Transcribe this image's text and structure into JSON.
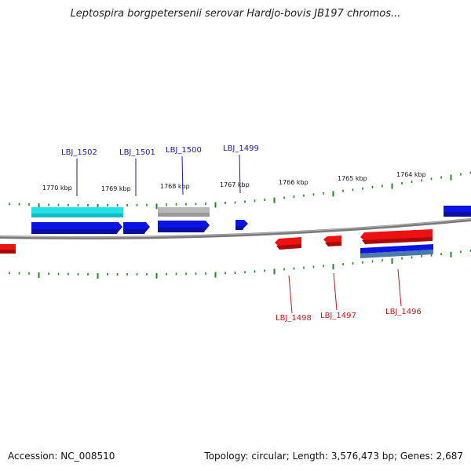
{
  "title": "Leptospira borgpetersenii serovar Hardjo-bovis JB197 chromos...",
  "accession_text": "Accession: NC_008510",
  "summary_text": "Topology: circular; Length: 3,576,473 bp; Genes: 2,687",
  "colors": {
    "forward_gene": "#0a14e6",
    "reverse_gene": "#ee1111",
    "highlight_cyan": "#22e2e8",
    "grey_block": "#b8b8b8",
    "backbone": "#808080",
    "tick": "#1f8a1f",
    "forward_label": "#1a1aa8",
    "reverse_label": "#c01818"
  },
  "kbp_labels": [
    "1770 kbp",
    "1769 kbp",
    "1768 kbp",
    "1767 kbp",
    "1766 kbp",
    "1765 kbp",
    "1764 kbp"
  ],
  "forward_labels": [
    "LBJ_1502",
    "LBJ_1501",
    "LBJ_1500",
    "LBJ_1499"
  ],
  "reverse_labels": [
    "LBJ_1498",
    "LBJ_1497",
    "LBJ_1496"
  ]
}
